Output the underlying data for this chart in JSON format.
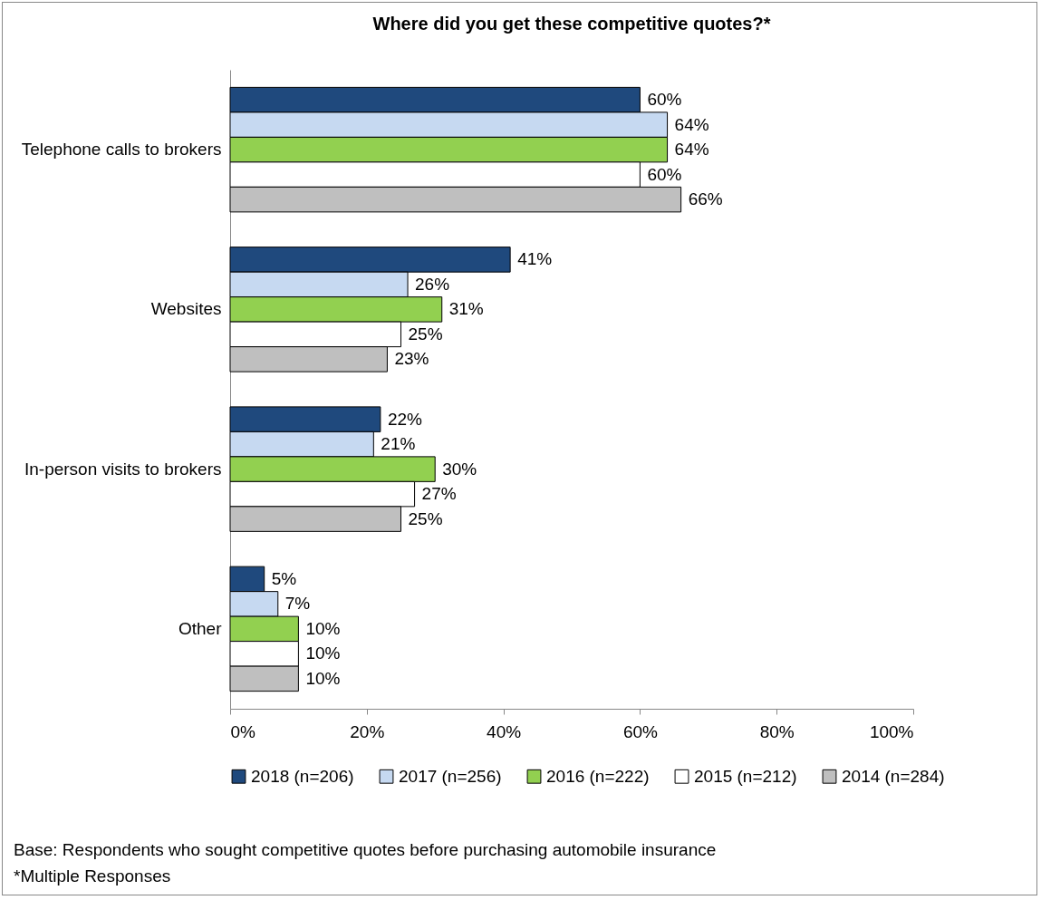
{
  "chart_data": {
    "type": "bar",
    "orientation": "horizontal",
    "title": "Where did you get these competitive quotes?*",
    "categories": [
      "Telephone calls to brokers",
      "Websites",
      "In-person visits to brokers",
      "Other"
    ],
    "series": [
      {
        "name": "2018 (n=206)",
        "color": "#1f497d",
        "values": [
          60,
          41,
          22,
          5
        ],
        "value_labels": [
          "60%",
          "41%",
          "22%",
          "5%"
        ]
      },
      {
        "name": "2017 (n=256)",
        "color": "#c6d9f1",
        "values": [
          64,
          26,
          21,
          7
        ],
        "value_labels": [
          "64%",
          "26%",
          "21%",
          "7%"
        ]
      },
      {
        "name": "2016 (n=222)",
        "color": "#92d050",
        "values": [
          64,
          31,
          30,
          10
        ],
        "value_labels": [
          "64%",
          "31%",
          "30%",
          "10%"
        ]
      },
      {
        "name": "2015 (n=212)",
        "color": "#ffffff",
        "values": [
          60,
          25,
          27,
          10
        ],
        "value_labels": [
          "60%",
          "25%",
          "27%",
          "10%"
        ]
      },
      {
        "name": "2014 (n=284)",
        "color": "#bfbfbf",
        "values": [
          66,
          23,
          25,
          10
        ],
        "value_labels": [
          "66%",
          "23%",
          "25%",
          "10%"
        ]
      }
    ],
    "xlim": [
      0,
      100
    ],
    "xticks": [
      {
        "value": 0,
        "label": "0%"
      },
      {
        "value": 20,
        "label": "20%"
      },
      {
        "value": 40,
        "label": "40%"
      },
      {
        "value": 60,
        "label": "60%"
      },
      {
        "value": 80,
        "label": "80%"
      },
      {
        "value": 100,
        "label": "100%"
      }
    ],
    "grid": false,
    "legend": "bottom",
    "annotations": [
      "Base: Respondents who sought competitive quotes before purchasing automobile insurance",
      "*Multiple Responses"
    ]
  }
}
